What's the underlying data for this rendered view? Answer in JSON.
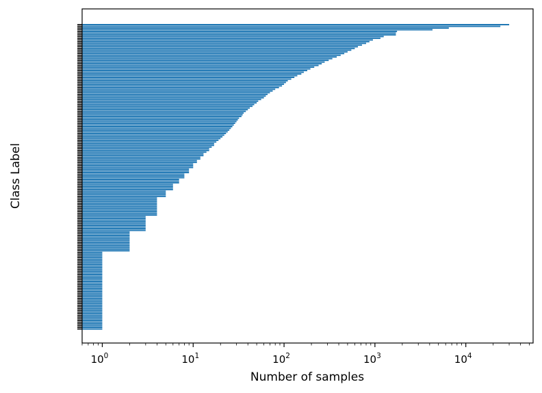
{
  "chart_data": {
    "type": "bar",
    "orientation": "horizontal",
    "x_scale": "log",
    "xlim": [
      0.6,
      55000
    ],
    "xlabel": "Number of samples",
    "ylabel": "Class Label",
    "x_ticks": [
      {
        "value": 1,
        "base": "10",
        "exp": "0"
      },
      {
        "value": 10,
        "base": "10",
        "exp": "1"
      },
      {
        "value": 100,
        "base": "10",
        "exp": "2"
      },
      {
        "value": 1000,
        "base": "10",
        "exp": "3"
      },
      {
        "value": 10000,
        "base": "10",
        "exp": "4"
      }
    ],
    "grid": false,
    "bar_color": "#1f77b4",
    "label_tick_color": "#000000",
    "category_labels_legible": false,
    "values": [
      30000,
      24000,
      6500,
      4300,
      1750,
      1700,
      1700,
      1250,
      1150,
      950,
      870,
      800,
      720,
      650,
      600,
      550,
      500,
      460,
      420,
      380,
      340,
      310,
      280,
      260,
      240,
      215,
      195,
      180,
      165,
      155,
      140,
      130,
      120,
      110,
      105,
      100,
      95,
      88,
      80,
      75,
      70,
      66,
      63,
      60,
      56,
      52,
      50,
      47,
      45,
      42,
      40,
      38,
      36,
      35,
      34,
      32,
      31,
      30,
      29,
      28,
      27,
      26,
      25,
      24,
      23,
      22,
      21,
      20,
      19,
      18,
      17,
      17,
      16,
      15,
      15,
      14,
      13,
      13,
      12,
      12,
      11,
      11,
      10,
      10,
      10,
      9,
      9,
      9,
      8,
      8,
      8,
      7,
      7,
      7,
      6,
      6,
      6,
      6,
      5,
      5,
      5,
      5,
      4,
      4,
      4,
      4,
      4,
      4,
      4,
      4,
      4,
      4,
      4,
      3,
      3,
      3,
      3,
      3,
      3,
      3,
      3,
      3,
      2,
      2,
      2,
      2,
      2,
      2,
      2,
      2,
      2,
      2,
      2,
      2,
      1,
      1,
      1,
      1,
      1,
      1,
      1,
      1,
      1,
      1,
      1,
      1,
      1,
      1,
      1,
      1,
      1,
      1,
      1,
      1,
      1,
      1,
      1,
      1,
      1,
      1,
      1,
      1,
      1,
      1,
      1,
      1,
      1,
      1,
      1,
      1,
      1,
      1,
      1,
      1,
      1,
      1,
      1,
      1,
      1,
      1
    ]
  }
}
